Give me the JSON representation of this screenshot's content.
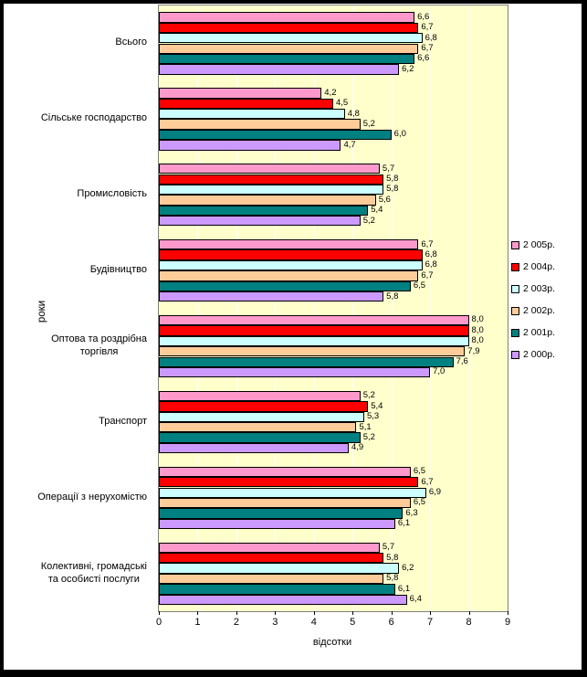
{
  "chart_data": {
    "type": "bar",
    "orientation": "horizontal",
    "title": "",
    "xlabel": "відсотки",
    "ylabel": "роки",
    "xlim": [
      0,
      9
    ],
    "x_ticks": [
      0,
      1,
      2,
      3,
      4,
      5,
      6,
      7,
      8,
      9
    ],
    "grid": "vertical-white-gridlines",
    "plot_background": "#FFFFCC",
    "legend_position": "right",
    "decimal_separator": ",",
    "categories": [
      "Всього",
      "Сільське господарство",
      "Промисловість",
      "Будівництво",
      "Оптова та роздрібна торгівля",
      "Транспорт",
      "Операції з нерухомістю",
      "Колективні, громадські та особисті послуги"
    ],
    "category_label_lines": [
      [
        "Всього"
      ],
      [
        "Сільське господарство"
      ],
      [
        "Промисловість"
      ],
      [
        "Будівництво"
      ],
      [
        "Оптова та роздрібна",
        "торгівля"
      ],
      [
        "Транспорт"
      ],
      [
        "Операції з нерухомістю"
      ],
      [
        "Колективні, громадські",
        "та особисті послуги"
      ]
    ],
    "series": [
      {
        "name": "2 005р.",
        "color": "#FF99CC",
        "values": [
          6.6,
          4.2,
          5.7,
          6.7,
          8.0,
          5.2,
          6.5,
          5.7
        ]
      },
      {
        "name": "2 004р.",
        "color": "#FF0000",
        "values": [
          6.7,
          4.5,
          5.8,
          6.8,
          8.0,
          5.4,
          6.7,
          5.8
        ]
      },
      {
        "name": "2 003р.",
        "color": "#CCFFFF",
        "values": [
          6.8,
          4.8,
          5.8,
          6.8,
          8.0,
          5.3,
          6.9,
          6.2
        ]
      },
      {
        "name": "2 002р.",
        "color": "#FFCC99",
        "values": [
          6.7,
          5.2,
          5.6,
          6.7,
          7.9,
          5.1,
          6.5,
          5.8
        ]
      },
      {
        "name": "2 001р.",
        "color": "#008080",
        "values": [
          6.6,
          6.0,
          5.4,
          6.5,
          7.6,
          5.2,
          6.3,
          6.1
        ]
      },
      {
        "name": "2 000р.",
        "color": "#CC99FF",
        "values": [
          6.2,
          4.7,
          5.2,
          5.8,
          7.0,
          4.9,
          6.1,
          6.4
        ]
      }
    ]
  },
  "colors": {
    "frame_border": "#000000",
    "chart_background": "#FFFFFF",
    "plot_background": "#FFFFCC",
    "gridline": "#FFFFFF",
    "bar_border": "#000000",
    "text": "#000000"
  }
}
